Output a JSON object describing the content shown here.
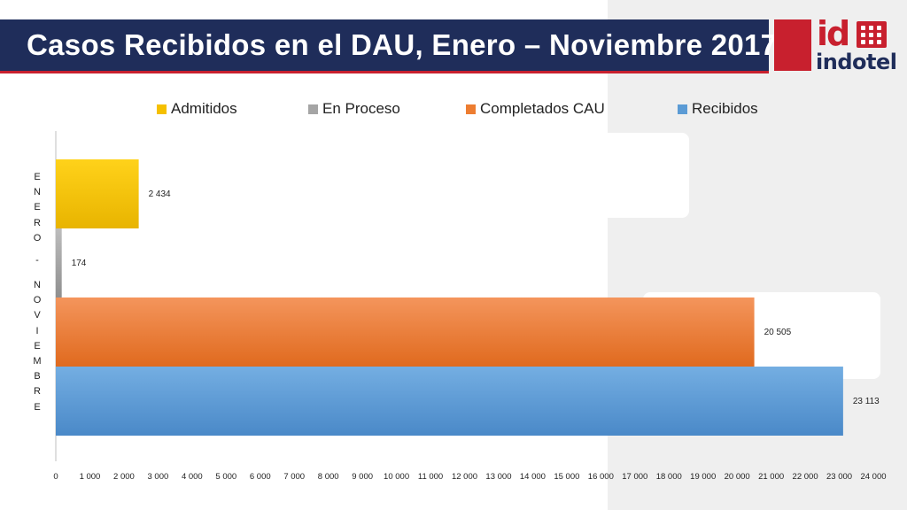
{
  "header": {
    "title": "Casos Recibidos en el DAU, Enero – Noviembre 2017"
  },
  "logo": {
    "text": "indotel",
    "colors": {
      "red": "#c8202e",
      "navy": "#1f2d5a"
    }
  },
  "chart_data": {
    "type": "bar",
    "orientation": "horizontal",
    "category": "ENERO - NOVIEMBRE",
    "series": [
      {
        "name": "Admitidos",
        "value": 2434,
        "label": "2 434",
        "color": "#f5c000"
      },
      {
        "name": "En Proceso",
        "value": 174,
        "label": "174",
        "color": "#a5a5a5"
      },
      {
        "name": "Completados CAU",
        "value": 20505,
        "label": "20 505",
        "color": "#ed7d31"
      },
      {
        "name": "Recibidos",
        "value": 23113,
        "label": "23 113",
        "color": "#5b9bd5"
      }
    ],
    "xlim": [
      0,
      24000
    ],
    "xticks": [
      "0",
      "1 000",
      "2 000",
      "3 000",
      "4 000",
      "5 000",
      "6 000",
      "7 000",
      "8 000",
      "9 000",
      "10 000",
      "11 000",
      "12 000",
      "13 000",
      "14 000",
      "15 000",
      "16 000",
      "17 000",
      "18 000",
      "19 000",
      "20 000",
      "21 000",
      "22 000",
      "23 000",
      "24 000"
    ],
    "legend_position": "top",
    "grid": false
  }
}
